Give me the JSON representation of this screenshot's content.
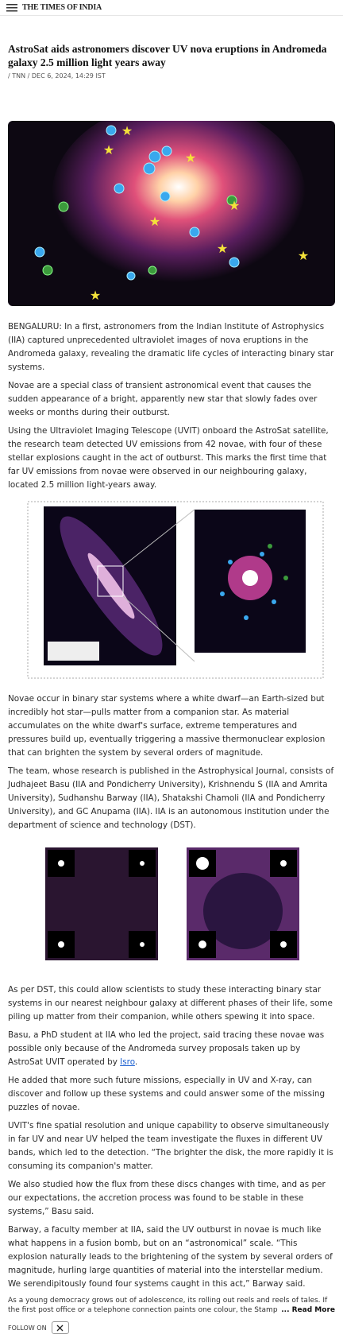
{
  "header": {
    "brand": "THE TIMES OF INDIA"
  },
  "article": {
    "title": "AstroSat aids astronomers discover UV nova eruptions in Andromeda galaxy 2.5 million light years away",
    "byline": "/ TNN / DEC 6, 2024, 14:29 IST",
    "paragraphs": [
      "BENGALURU: In a first, astronomers from the Indian Institute of Astrophysics (IIA) captured unprecedented ultraviolet images of nova eruptions in the Andromeda galaxy, revealing the dramatic life cycles of interacting binary star systems.",
      "Novae are a special class of transient astronomical event that causes the sudden appearance of a bright, apparently new star that slowly fades over weeks or months during their outburst.",
      "Using the Ultraviolet Imaging Telescope (UVIT) onboard the AstroSat satellite, the research team detected UV emissions from 42 novae, with four of these stellar explosions caught in the act of outburst. This marks the first time that far UV emissions from novae were observed in our neighbouring galaxy, located 2.5 million light-years away.",
      "Novae occur in binary star systems where a white dwarf—an Earth-sized but incredibly hot star—pulls matter from a companion star. As material accumulates on the white dwarf's surface, extreme temperatures and pressures build up, eventually triggering a massive thermonuclear explosion that can brighten the system by several orders of magnitude.",
      "The team, whose research is published in the Astrophysical Journal, consists of Judhajeet Basu (IIA and Pondicherry University), Krishnendu S (IIA and Amrita University), Sudhanshu Barway (IIA), Shatakshi Chamoli (IIA and Pondicherry University), and GC Anupama (IIA). IIA is an autonomous institution under the department of science and technology (DST).",
      "As per DST, this could allow scientists to study these interacting binary star systems in our nearest neighbour galaxy at different phases of their life, some piling up matter from their companion, while others spewing it into space.",
      {
        "text": "Basu, a PhD student at IIA who led the project, said tracing these novae was possible only because of the Andromeda survey proposals taken up by AstroSat UVIT operated by ",
        "link": "Isro",
        "end": "."
      },
      "He added that more such future missions, especially in UV and X-ray, can discover and follow up these systems and could answer some of the missing puzzles of novae.",
      "UVIT's fine spatial resolution and unique capability to observe simultaneously in far UV and near UV helped the team investigate the fluxes in different UV bands, which led to the detection. “The brighter the disk, the more rapidly it is consuming its companion's matter.",
      "We also studied how the flux from these discs changes with time, and as per our expectations, the accretion process was found to be stable in these systems,” Basu said.",
      "Barway, a faculty member at IIA, said the UV outburst in novae is much like what happens in a fusion bomb, but on an “astronomical” scale. “This explosion naturally leads to the brightening of the system by several orders of magnitude, hurling large quantities of material into the interstellar medium. We serendipitously found four systems caught in this act,” Barway said."
    ]
  },
  "footer": {
    "teaser": "As a young democracy grows out of adolescence, its rolling out reels and reels of tales. If the first post office or a telephone connection paints one colour, the Stamp of a sto",
    "read_more": "... Read More",
    "follow_label": "FOLLOW ON"
  }
}
